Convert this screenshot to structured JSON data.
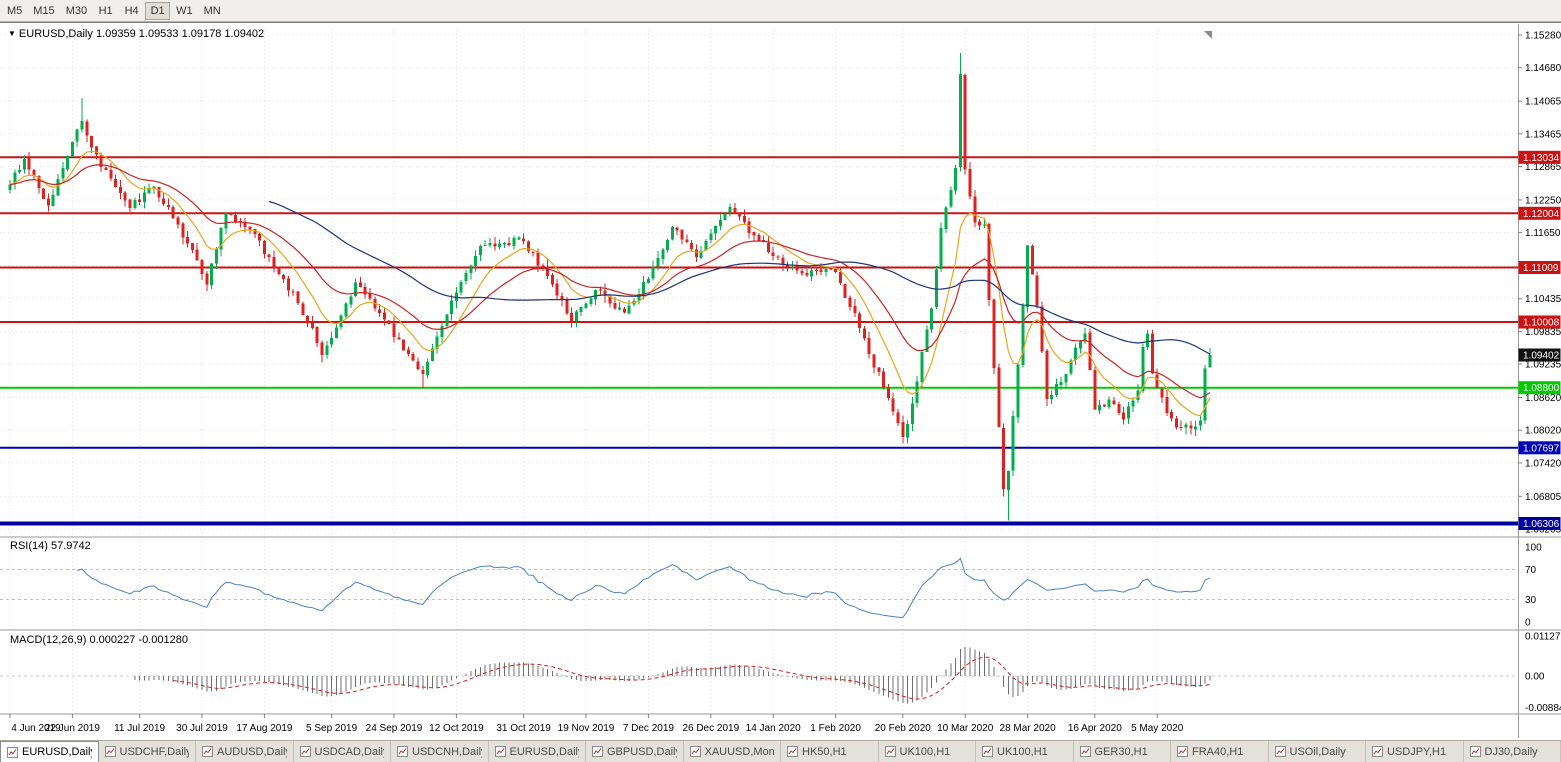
{
  "icons": {
    "collapse": "▼"
  },
  "toolbar": {
    "timeframes": [
      "M5",
      "M15",
      "M30",
      "H1",
      "H4",
      "D1",
      "W1",
      "MN"
    ],
    "active": "D1"
  },
  "chart_data": {
    "type": "candlestick",
    "symbol_title": "EURUSD,Daily",
    "ohlc_text": "1.09359 1.09533 1.09178 1.09402",
    "last_ohlc": {
      "open": 1.09359,
      "high": 1.09533,
      "low": 1.09178,
      "close": 1.09402
    },
    "current_price": "1.09402",
    "colors": {
      "up": "#00ae4d",
      "down": "#dd2222",
      "ma_fast": "#e8a61e",
      "ma_mid": "#c92525",
      "ma_slow": "#1f3378",
      "rsi_line": "#4f81bd",
      "macd_hist": "#6f6f6f",
      "macd_signal": "#cc2222",
      "level_red": "#cc1212",
      "level_green": "#00cc00",
      "level_blue": "#0000b8",
      "current_tag": "#111111"
    },
    "y_ticks": [
      "1.15280",
      "1.14680",
      "1.14065",
      "1.13465",
      "1.12865",
      "1.12250",
      "1.11650",
      "1.11035",
      "1.10435",
      "1.09835",
      "1.09235",
      "1.08620",
      "1.08020",
      "1.07420",
      "1.06805",
      "1.06205"
    ],
    "x_labels": [
      {
        "i": 0,
        "label": "4 Jun 2019"
      },
      {
        "i": 13,
        "label": "22 Jun 2019"
      },
      {
        "i": 27,
        "label": "11 Jul 2019"
      },
      {
        "i": 40,
        "label": "30 Jul 2019"
      },
      {
        "i": 53,
        "label": "17 Aug 2019"
      },
      {
        "i": 67,
        "label": "5 Sep 2019"
      },
      {
        "i": 80,
        "label": "24 Sep 2019"
      },
      {
        "i": 93,
        "label": "12 Oct 2019"
      },
      {
        "i": 107,
        "label": "31 Oct 2019"
      },
      {
        "i": 120,
        "label": "19 Nov 2019"
      },
      {
        "i": 133,
        "label": "7 Dec 2019"
      },
      {
        "i": 146,
        "label": "26 Dec 2019"
      },
      {
        "i": 159,
        "label": "14 Jan 2020"
      },
      {
        "i": 172,
        "label": "1 Feb 2020"
      },
      {
        "i": 186,
        "label": "20 Feb 2020"
      },
      {
        "i": 199,
        "label": "10 Mar 2020"
      },
      {
        "i": 212,
        "label": "28 Mar 2020"
      },
      {
        "i": 226,
        "label": "16 Apr 2020"
      },
      {
        "i": 239,
        "label": "5 May 2020"
      }
    ],
    "hlines": [
      {
        "price": 1.13034,
        "tag": "1.13034",
        "color": "#cc1212",
        "width": 2
      },
      {
        "price": 1.12004,
        "tag": "1.12004",
        "color": "#cc1212",
        "width": 2
      },
      {
        "price": 1.11009,
        "tag": "1.11009",
        "color": "#cc1212",
        "width": 2
      },
      {
        "price": 1.10008,
        "tag": "1.10008",
        "color": "#cc1212",
        "width": 2
      },
      {
        "price": 1.088,
        "tag": "1.08800",
        "color": "#00cc00",
        "width": 2
      },
      {
        "price": 1.07697,
        "tag": "1.07697",
        "color": "#0000b8",
        "width": 2
      },
      {
        "price": 1.06306,
        "tag": "1.06306",
        "color": "#0000a0",
        "width": 4
      }
    ],
    "bars": 251,
    "seed": 20200520,
    "anchors": [
      [
        0,
        1.1253
      ],
      [
        3,
        1.13
      ],
      [
        8,
        1.1215
      ],
      [
        15,
        1.137
      ],
      [
        19,
        1.1286
      ],
      [
        25,
        1.121
      ],
      [
        30,
        1.125
      ],
      [
        37,
        1.1145
      ],
      [
        41,
        1.107
      ],
      [
        45,
        1.12
      ],
      [
        50,
        1.117
      ],
      [
        57,
        1.108
      ],
      [
        63,
        1.099
      ],
      [
        65,
        1.094
      ],
      [
        72,
        1.1073
      ],
      [
        77,
        1.1017
      ],
      [
        84,
        1.093
      ],
      [
        86,
        1.0905
      ],
      [
        92,
        1.104
      ],
      [
        98,
        1.114
      ],
      [
        107,
        1.115
      ],
      [
        113,
        1.107
      ],
      [
        117,
        1.1003
      ],
      [
        122,
        1.106
      ],
      [
        128,
        1.1018
      ],
      [
        133,
        1.108
      ],
      [
        138,
        1.1175
      ],
      [
        143,
        1.112
      ],
      [
        150,
        1.1212
      ],
      [
        155,
        1.116
      ],
      [
        159,
        1.1122
      ],
      [
        165,
        1.109
      ],
      [
        172,
        1.1093
      ],
      [
        177,
        1.099
      ],
      [
        182,
        1.088
      ],
      [
        186,
        1.079
      ],
      [
        188,
        1.0851
      ],
      [
        192,
        1.1026
      ],
      [
        194,
        1.1173
      ],
      [
        197,
        1.1284
      ],
      [
        198,
        1.1456
      ],
      [
        199,
        1.1281
      ],
      [
        201,
        1.1184
      ],
      [
        203,
        1.118
      ],
      [
        205,
        1.0916
      ],
      [
        207,
        1.0694
      ],
      [
        208,
        1.0727
      ],
      [
        211,
        1.103
      ],
      [
        212,
        1.1141
      ],
      [
        214,
        1.1031
      ],
      [
        216,
        1.0859
      ],
      [
        219,
        1.0891
      ],
      [
        221,
        1.093
      ],
      [
        224,
        1.098
      ],
      [
        226,
        1.084
      ],
      [
        229,
        1.0858
      ],
      [
        232,
        1.0822
      ],
      [
        235,
        1.0875
      ],
      [
        236,
        1.0955
      ],
      [
        237,
        1.098
      ],
      [
        238,
        1.0906
      ],
      [
        241,
        1.0834
      ],
      [
        243,
        1.0807
      ],
      [
        246,
        1.0805
      ],
      [
        248,
        1.082
      ],
      [
        249,
        1.0915
      ],
      [
        250,
        1.09402
      ]
    ],
    "extremes": [
      {
        "i": 15,
        "high": 1.1412
      },
      {
        "i": 65,
        "low": 1.0926
      },
      {
        "i": 86,
        "low": 1.0879
      },
      {
        "i": 186,
        "low": 1.0778
      },
      {
        "i": 198,
        "high": 1.1495
      },
      {
        "i": 207,
        "low": 1.068
      },
      {
        "i": 208,
        "low": 1.0636
      },
      {
        "i": 250,
        "high": 1.09533,
        "low": 1.09178
      }
    ],
    "ma": [
      {
        "period": 10,
        "kind": "ema",
        "color": "#e8a61e"
      },
      {
        "period": 25,
        "kind": "ema",
        "color": "#c92525"
      },
      {
        "period": 55,
        "kind": "sma",
        "color": "#1f3378"
      }
    ],
    "indicators": {
      "rsi": {
        "label": "RSI(14) 57.9742",
        "period": 14,
        "levels": [
          "100",
          "70",
          "30",
          "0"
        ],
        "level_values": [
          100,
          70,
          30,
          0
        ],
        "dashed": [
          70,
          30
        ],
        "value": 57.9742
      },
      "macd": {
        "label": "MACD(12,26,9) 0.000227 -0.001280",
        "fast": 12,
        "slow": 26,
        "signal": 9,
        "axis": [
          {
            "label": "0.011277",
            "v": 0.011277
          },
          {
            "label": "0.00",
            "v": 0
          },
          {
            "label": "-0.00884",
            "v": -0.00884
          }
        ],
        "value": 0.000227,
        "signal_value": -0.00128
      }
    }
  },
  "tabs": [
    {
      "label": "EURUSD,Daily",
      "active": true
    },
    {
      "label": "USDCHF,Daily",
      "active": false
    },
    {
      "label": "AUDUSD,Daily",
      "active": false
    },
    {
      "label": "USDCAD,Daily",
      "active": false
    },
    {
      "label": "USDCNH,Daily",
      "active": false
    },
    {
      "label": "EURUSD,Daily",
      "active": false
    },
    {
      "label": "GBPUSD,Daily",
      "active": false
    },
    {
      "label": "XAUUSD,Monthly",
      "active": false
    },
    {
      "label": "HK50,H1",
      "active": false
    },
    {
      "label": "UK100,H1",
      "active": false
    },
    {
      "label": "UK100,H1",
      "active": false
    },
    {
      "label": "GER30,H1",
      "active": false
    },
    {
      "label": "FRA40,H1",
      "active": false
    },
    {
      "label": "USOil,Daily",
      "active": false
    },
    {
      "label": "USDJPY,H1",
      "active": false
    },
    {
      "label": "DJ30,Daily",
      "active": false
    }
  ]
}
